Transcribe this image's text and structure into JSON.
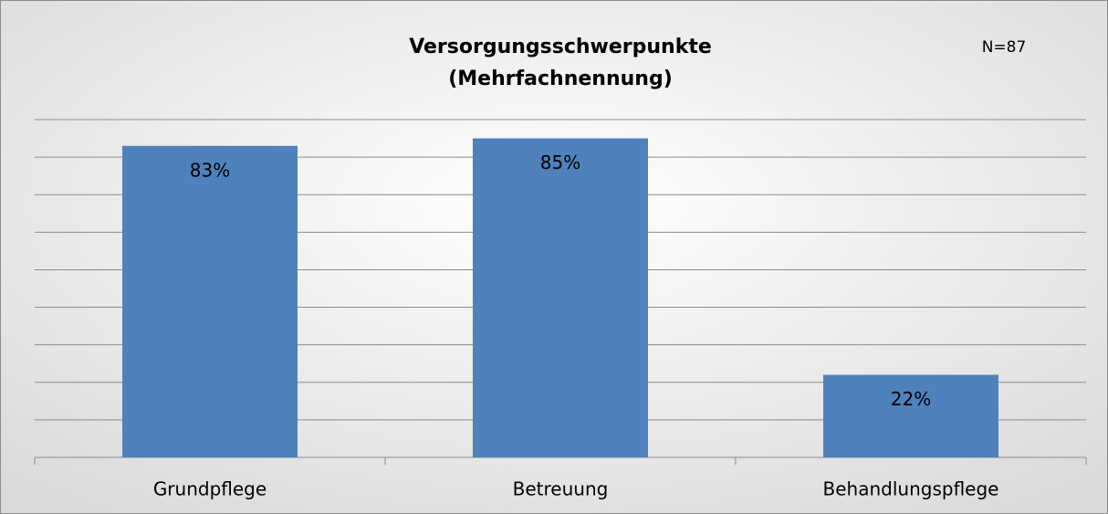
{
  "chart_data": {
    "type": "bar",
    "title": [
      "Versorgungsschwerpunkte",
      "(Mehrfachnennung)"
    ],
    "annotation": "N=87",
    "categories": [
      "Grundpflege",
      "Betreuung",
      "Behandlungspflege"
    ],
    "values": [
      83,
      85,
      22
    ],
    "value_labels": [
      "83%",
      "85%",
      "22%"
    ],
    "color": "#4f81bd",
    "ylim": [
      0,
      90
    ],
    "yticks": [
      0,
      10,
      20,
      30,
      40,
      50,
      60,
      70,
      80,
      90
    ],
    "grid": true
  }
}
